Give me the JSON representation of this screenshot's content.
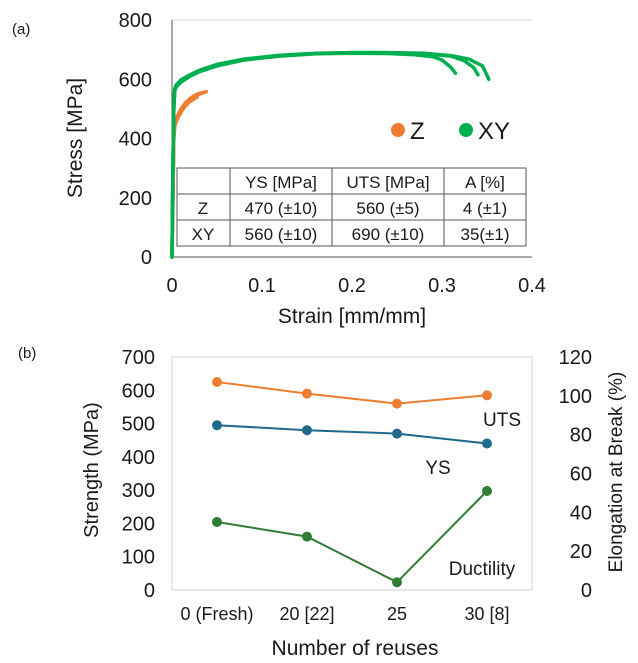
{
  "chart_data": [
    {
      "panel_label": "(a)",
      "type": "line",
      "xlabel": "Strain [mm/mm]",
      "ylabel": "Stress [MPa]",
      "xlim": [
        0,
        0.4
      ],
      "ylim": [
        0,
        800
      ],
      "xticks": [
        "0",
        "0.1",
        "0.2",
        "0.3",
        "0.4"
      ],
      "yticks": [
        "0",
        "200",
        "400",
        "600",
        "800"
      ],
      "grid": false,
      "legend_position": "right",
      "legend": [
        {
          "name": "Z",
          "color": "#ED7D31"
        },
        {
          "name": "XY",
          "color": "#00B050"
        }
      ],
      "series": [
        {
          "name": "Z",
          "color": "#ED7D31",
          "curves": [
            {
              "x": [
                0,
                0.001,
                0.002,
                0.003,
                0.005,
                0.01,
                0.015,
                0.02,
                0.025,
                0.03,
                0.035
              ],
              "y": [
                0,
                200,
                400,
                450,
                470,
                500,
                520,
                535,
                545,
                552,
                555
              ]
            },
            {
              "x": [
                0,
                0.001,
                0.002,
                0.003,
                0.005,
                0.01,
                0.015,
                0.02,
                0.025,
                0.03,
                0.038
              ],
              "y": [
                0,
                200,
                400,
                445,
                465,
                495,
                515,
                530,
                540,
                550,
                558
              ]
            },
            {
              "x": [
                0,
                0.001,
                0.002,
                0.003,
                0.005,
                0.01,
                0.015,
                0.02,
                0.028
              ],
              "y": [
                0,
                200,
                400,
                440,
                460,
                490,
                510,
                525,
                540
              ]
            }
          ]
        },
        {
          "name": "XY",
          "color": "#00B050",
          "curves": [
            {
              "x": [
                0,
                0.001,
                0.002,
                0.003,
                0.005,
                0.01,
                0.02,
                0.03,
                0.05,
                0.08,
                0.12,
                0.16,
                0.2,
                0.24,
                0.27,
                0.29,
                0.3,
                0.31,
                0.315
              ],
              "y": [
                0,
                300,
                500,
                560,
                575,
                590,
                610,
                625,
                645,
                665,
                678,
                686,
                688,
                687,
                683,
                676,
                665,
                640,
                620
              ]
            },
            {
              "x": [
                0,
                0.001,
                0.002,
                0.003,
                0.005,
                0.01,
                0.02,
                0.03,
                0.05,
                0.08,
                0.12,
                0.16,
                0.2,
                0.24,
                0.28,
                0.31,
                0.325,
                0.335,
                0.34
              ],
              "y": [
                0,
                300,
                500,
                565,
                580,
                595,
                612,
                628,
                648,
                667,
                680,
                687,
                690,
                690,
                687,
                678,
                662,
                640,
                615
              ]
            },
            {
              "x": [
                0,
                0.001,
                0.002,
                0.003,
                0.005,
                0.01,
                0.02,
                0.03,
                0.05,
                0.08,
                0.12,
                0.16,
                0.2,
                0.24,
                0.28,
                0.31,
                0.33,
                0.345,
                0.352
              ],
              "y": [
                0,
                300,
                500,
                568,
                582,
                598,
                615,
                630,
                650,
                668,
                681,
                688,
                690,
                690,
                688,
                680,
                668,
                645,
                600
              ]
            }
          ]
        }
      ],
      "table": {
        "headers": [
          "",
          "YS [MPa]",
          "UTS [MPa]",
          "A [%]"
        ],
        "rows": [
          [
            "Z",
            "470 (±10)",
            "560 (±5)",
            "4 (±1)"
          ],
          [
            "XY",
            "560 (±10)",
            "690 (±10)",
            "35(±1)"
          ]
        ]
      }
    },
    {
      "panel_label": "(b)",
      "type": "line",
      "xlabel": "Number of reuses",
      "ylabel": "Strength (MPa)",
      "y2label": "Elongation at Break (%)",
      "categories": [
        "0 (Fresh)",
        "20 [22]",
        "25",
        "30 [8]"
      ],
      "ylim": [
        0,
        700
      ],
      "yticks": [
        "0",
        "100",
        "200",
        "300",
        "400",
        "500",
        "600",
        "700"
      ],
      "y2lim": [
        0,
        120
      ],
      "y2ticks": [
        "0",
        "20",
        "40",
        "60",
        "80",
        "100",
        "120"
      ],
      "grid": false,
      "series": [
        {
          "name": "UTS",
          "axis": "left",
          "color": "#ED7D31",
          "values": [
            625,
            590,
            560,
            585
          ]
        },
        {
          "name": "YS",
          "axis": "left",
          "color": "#1F6A8A",
          "values": [
            495,
            480,
            470,
            440
          ]
        },
        {
          "name": "Ductility",
          "axis": "right",
          "color": "#2E7D32",
          "values": [
            35,
            27.5,
            4,
            51
          ]
        }
      ]
    }
  ]
}
